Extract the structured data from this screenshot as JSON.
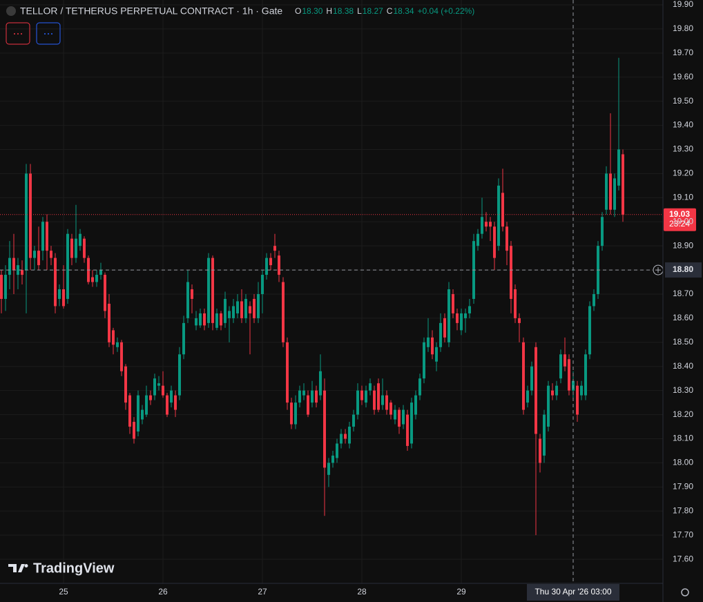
{
  "chart_data": {
    "type": "candlestick",
    "title": "TELLOR / TETHERUS PERPETUAL CONTRACT · 1h · Gate",
    "legend": {
      "open_label": "O",
      "open": "18.30",
      "high_label": "H",
      "high": "18.38",
      "low_label": "L",
      "low": "18.27",
      "close_label": "C",
      "close": "18.34",
      "change": "+0.04 (+0.22%)"
    },
    "watermark": "TradingView",
    "up_color": "#089981",
    "down_color": "#f23645",
    "grid": true,
    "countdown": "23:24",
    "crosshair": {
      "time": {
        "value": "2026-04-30T03:00",
        "label": "Thu 30 Apr '26 03:00"
      },
      "price": {
        "value": 18.8,
        "label": "18.80"
      }
    },
    "xlim": [
      "2026-04-24T08:40",
      "2026-05-01T00:40"
    ],
    "xticks": [
      {
        "value": "2026-04-25T00:00",
        "label": "25"
      },
      {
        "value": "2026-04-26T00:00",
        "label": "26"
      },
      {
        "value": "2026-04-27T00:00",
        "label": "27"
      },
      {
        "value": "2026-04-28T00:00",
        "label": "28"
      },
      {
        "value": "2026-04-29T00:00",
        "label": "29"
      }
    ],
    "ylim": [
      17.5,
      19.92
    ],
    "yticks": [
      {
        "value": 17.6,
        "label": "17.60"
      },
      {
        "value": 17.7,
        "label": "17.70"
      },
      {
        "value": 17.8,
        "label": "17.80"
      },
      {
        "value": 17.9,
        "label": "17.90"
      },
      {
        "value": 18.0,
        "label": "18.00"
      },
      {
        "value": 18.1,
        "label": "18.10"
      },
      {
        "value": 18.2,
        "label": "18.20"
      },
      {
        "value": 18.3,
        "label": "18.30"
      },
      {
        "value": 18.4,
        "label": "18.40"
      },
      {
        "value": 18.5,
        "label": "18.50"
      },
      {
        "value": 18.6,
        "label": "18.60"
      },
      {
        "value": 18.7,
        "label": "18.70"
      },
      {
        "value": 18.8,
        "label": "18.80"
      },
      {
        "value": 18.9,
        "label": "18.90"
      },
      {
        "value": 19.0,
        "label": "19.00"
      },
      {
        "value": 19.1,
        "label": "19.10"
      },
      {
        "value": 19.2,
        "label": "19.20"
      },
      {
        "value": 19.3,
        "label": "19.30"
      },
      {
        "value": 19.4,
        "label": "19.40"
      },
      {
        "value": 19.5,
        "label": "19.50"
      },
      {
        "value": 19.6,
        "label": "19.60"
      },
      {
        "value": 19.7,
        "label": "19.70"
      },
      {
        "value": 19.8,
        "label": "19.80"
      },
      {
        "value": 19.9,
        "label": "19.90"
      }
    ],
    "x": [
      "2026-04-24T09:00",
      "2026-04-24T10:00",
      "2026-04-24T11:00",
      "2026-04-24T12:00",
      "2026-04-24T13:00",
      "2026-04-24T14:00",
      "2026-04-24T15:00",
      "2026-04-24T16:00",
      "2026-04-24T17:00",
      "2026-04-24T18:00",
      "2026-04-24T19:00",
      "2026-04-24T20:00",
      "2026-04-24T21:00",
      "2026-04-24T22:00",
      "2026-04-24T23:00",
      "2026-04-25T00:00",
      "2026-04-25T01:00",
      "2026-04-25T02:00",
      "2026-04-25T03:00",
      "2026-04-25T04:00",
      "2026-04-25T05:00",
      "2026-04-25T06:00",
      "2026-04-25T07:00",
      "2026-04-25T08:00",
      "2026-04-25T09:00",
      "2026-04-25T10:00",
      "2026-04-25T11:00",
      "2026-04-25T12:00",
      "2026-04-25T13:00",
      "2026-04-25T14:00",
      "2026-04-25T15:00",
      "2026-04-25T16:00",
      "2026-04-25T17:00",
      "2026-04-25T18:00",
      "2026-04-25T19:00",
      "2026-04-25T20:00",
      "2026-04-25T21:00",
      "2026-04-25T22:00",
      "2026-04-25T23:00",
      "2026-04-26T00:00",
      "2026-04-26T01:00",
      "2026-04-26T02:00",
      "2026-04-26T03:00",
      "2026-04-26T04:00",
      "2026-04-26T05:00",
      "2026-04-26T06:00",
      "2026-04-26T07:00",
      "2026-04-26T08:00",
      "2026-04-26T09:00",
      "2026-04-26T10:00",
      "2026-04-26T11:00",
      "2026-04-26T12:00",
      "2026-04-26T13:00",
      "2026-04-26T14:00",
      "2026-04-26T15:00",
      "2026-04-26T16:00",
      "2026-04-26T17:00",
      "2026-04-26T18:00",
      "2026-04-26T19:00",
      "2026-04-26T20:00",
      "2026-04-26T21:00",
      "2026-04-26T22:00",
      "2026-04-26T23:00",
      "2026-04-27T00:00",
      "2026-04-27T01:00",
      "2026-04-27T02:00",
      "2026-04-27T03:00",
      "2026-04-27T04:00",
      "2026-04-27T05:00",
      "2026-04-27T06:00",
      "2026-04-27T07:00",
      "2026-04-27T08:00",
      "2026-04-27T09:00",
      "2026-04-27T10:00",
      "2026-04-27T11:00",
      "2026-04-27T12:00",
      "2026-04-27T13:00",
      "2026-04-27T14:00",
      "2026-04-27T15:00",
      "2026-04-27T16:00",
      "2026-04-27T17:00",
      "2026-04-27T18:00",
      "2026-04-27T19:00",
      "2026-04-27T20:00",
      "2026-04-27T21:00",
      "2026-04-27T22:00",
      "2026-04-27T23:00",
      "2026-04-28T00:00",
      "2026-04-28T01:00",
      "2026-04-28T02:00",
      "2026-04-28T03:00",
      "2026-04-28T04:00",
      "2026-04-28T05:00",
      "2026-04-28T06:00",
      "2026-04-28T07:00",
      "2026-04-28T08:00",
      "2026-04-28T09:00",
      "2026-04-28T10:00",
      "2026-04-28T11:00",
      "2026-04-28T12:00",
      "2026-04-28T13:00",
      "2026-04-28T14:00",
      "2026-04-28T15:00",
      "2026-04-28T16:00",
      "2026-04-28T17:00",
      "2026-04-28T18:00",
      "2026-04-28T19:00",
      "2026-04-28T20:00",
      "2026-04-28T21:00",
      "2026-04-28T22:00",
      "2026-04-28T23:00",
      "2026-04-29T00:00",
      "2026-04-29T01:00",
      "2026-04-29T02:00",
      "2026-04-29T03:00",
      "2026-04-29T04:00",
      "2026-04-29T05:00",
      "2026-04-29T06:00",
      "2026-04-29T07:00",
      "2026-04-29T08:00",
      "2026-04-29T09:00",
      "2026-04-29T10:00",
      "2026-04-29T11:00",
      "2026-04-29T12:00",
      "2026-04-29T13:00",
      "2026-04-29T14:00",
      "2026-04-29T15:00",
      "2026-04-29T16:00",
      "2026-04-29T17:00",
      "2026-04-29T18:00",
      "2026-04-29T19:00",
      "2026-04-29T20:00",
      "2026-04-29T21:00",
      "2026-04-29T22:00",
      "2026-04-29T23:00",
      "2026-04-30T00:00",
      "2026-04-30T01:00",
      "2026-04-30T02:00",
      "2026-04-30T03:00",
      "2026-04-30T04:00",
      "2026-04-30T05:00",
      "2026-04-30T06:00",
      "2026-04-30T07:00",
      "2026-04-30T08:00",
      "2026-04-30T09:00",
      "2026-04-30T10:00",
      "2026-04-30T11:00",
      "2026-04-30T12:00",
      "2026-04-30T13:00",
      "2026-04-30T14:00",
      "2026-04-30T15:00"
    ],
    "open": [
      18.78,
      18.68,
      18.78,
      18.85,
      18.78,
      18.8,
      18.8,
      19.2,
      18.85,
      18.88,
      18.88,
      19.0,
      18.88,
      18.85,
      18.68,
      18.72,
      18.68,
      18.93,
      18.85,
      18.9,
      18.93,
      18.85,
      18.77,
      18.75,
      18.78,
      18.78,
      18.66,
      18.55,
      18.48,
      18.5,
      18.4,
      18.28,
      18.17,
      18.13,
      18.18,
      18.2,
      18.28,
      18.28,
      18.32,
      18.32,
      18.28,
      18.25,
      18.28,
      18.28,
      18.45,
      18.6,
      18.72,
      18.57,
      18.57,
      18.62,
      18.58,
      18.85,
      18.56,
      18.62,
      18.58,
      18.6,
      18.6,
      18.62,
      18.67,
      18.6,
      18.65,
      18.68,
      18.6,
      18.7,
      18.78,
      18.85,
      18.9,
      18.86,
      18.75,
      18.5,
      18.25,
      18.16,
      18.25,
      18.28,
      18.28,
      18.25,
      18.3,
      18.28,
      18.3,
      17.95,
      18.0,
      18.02,
      18.08,
      18.12,
      18.08,
      18.15,
      18.2,
      18.3,
      18.25,
      18.3,
      18.3,
      18.33,
      18.24,
      18.28,
      18.25,
      18.18,
      18.22,
      18.16,
      18.2,
      18.08,
      18.2,
      18.28,
      18.35,
      18.48,
      18.52,
      18.42,
      18.48,
      18.6,
      18.5,
      18.7,
      18.62,
      18.55,
      18.6,
      18.62,
      18.68,
      18.9,
      18.95,
      19.0,
      19.0,
      18.98,
      18.9,
      19.12,
      18.98,
      18.9,
      18.72,
      18.6,
      18.5,
      18.25,
      18.3,
      18.48,
      18.1,
      18.03,
      18.15,
      18.3,
      18.28,
      18.35,
      18.45,
      18.43,
      18.3,
      18.32,
      18.28,
      18.28,
      18.45,
      18.65,
      18.7,
      18.9,
      19.05,
      19.2,
      19.05,
      19.15,
      19.28
    ],
    "high": [
      18.8,
      18.82,
      18.92,
      18.95,
      18.85,
      18.84,
      19.24,
      19.24,
      18.9,
      18.98,
      19.02,
      19.03,
      18.9,
      18.87,
      18.74,
      18.82,
      18.97,
      18.95,
      19.07,
      18.97,
      18.94,
      18.86,
      18.8,
      18.8,
      18.83,
      18.79,
      18.7,
      18.56,
      18.52,
      18.51,
      18.41,
      18.29,
      18.19,
      18.3,
      18.24,
      18.32,
      18.3,
      18.37,
      18.36,
      18.38,
      18.29,
      18.32,
      18.3,
      18.48,
      18.61,
      18.8,
      18.74,
      18.63,
      18.64,
      18.64,
      18.87,
      18.86,
      18.64,
      18.63,
      18.71,
      18.65,
      18.68,
      18.7,
      18.72,
      18.7,
      18.67,
      18.7,
      18.75,
      18.8,
      18.87,
      18.87,
      18.95,
      18.88,
      18.77,
      18.52,
      18.27,
      18.28,
      18.32,
      18.33,
      18.3,
      18.34,
      18.32,
      18.45,
      18.35,
      18.02,
      18.05,
      18.1,
      18.14,
      18.14,
      18.17,
      18.22,
      18.33,
      18.32,
      18.32,
      18.35,
      18.32,
      18.35,
      18.35,
      18.3,
      18.26,
      18.24,
      18.23,
      18.24,
      18.22,
      18.27,
      18.3,
      18.37,
      18.52,
      18.6,
      18.55,
      18.5,
      18.62,
      18.62,
      18.75,
      18.72,
      18.64,
      18.64,
      18.64,
      18.68,
      18.95,
      18.97,
      19.1,
      19.04,
      19.02,
      19.0,
      19.18,
      19.22,
      19.0,
      18.92,
      18.74,
      18.62,
      18.52,
      18.32,
      18.42,
      18.5,
      18.12,
      18.22,
      18.34,
      18.33,
      18.34,
      18.47,
      18.52,
      18.45,
      18.38,
      18.34,
      18.34,
      18.47,
      18.67,
      18.72,
      18.92,
      19.04,
      19.23,
      19.45,
      19.2,
      19.68,
      19.3
    ],
    "low": [
      18.62,
      18.63,
      18.72,
      18.7,
      18.72,
      18.74,
      18.62,
      18.8,
      18.8,
      18.8,
      18.84,
      18.8,
      18.82,
      18.62,
      18.65,
      18.64,
      18.66,
      18.82,
      18.83,
      18.88,
      18.83,
      18.74,
      18.73,
      18.73,
      18.76,
      18.6,
      18.48,
      18.45,
      18.46,
      18.36,
      18.22,
      18.12,
      18.08,
      18.11,
      18.16,
      18.19,
      18.24,
      18.26,
      18.3,
      18.27,
      18.19,
      18.23,
      18.19,
      18.26,
      18.43,
      18.58,
      18.62,
      18.55,
      18.56,
      18.55,
      18.56,
      18.55,
      18.55,
      18.55,
      18.56,
      18.5,
      18.58,
      18.6,
      18.58,
      18.58,
      18.45,
      18.58,
      18.58,
      18.62,
      18.76,
      18.8,
      18.85,
      18.75,
      18.48,
      18.22,
      18.14,
      18.14,
      18.23,
      18.26,
      18.19,
      18.23,
      18.23,
      18.26,
      17.78,
      17.9,
      17.98,
      18.0,
      18.06,
      18.08,
      18.06,
      18.13,
      18.18,
      18.24,
      18.23,
      18.28,
      18.2,
      18.21,
      18.22,
      18.2,
      18.18,
      18.16,
      18.12,
      18.14,
      18.05,
      18.06,
      18.18,
      18.26,
      18.33,
      18.46,
      18.43,
      18.38,
      18.46,
      18.5,
      18.48,
      18.6,
      18.55,
      18.53,
      18.54,
      18.6,
      18.66,
      18.88,
      18.93,
      18.96,
      18.92,
      18.8,
      18.88,
      18.96,
      18.82,
      18.62,
      18.58,
      18.5,
      18.2,
      18.23,
      18.28,
      17.7,
      17.96,
      18.0,
      18.13,
      18.26,
      18.26,
      18.33,
      18.38,
      18.28,
      18.27,
      18.17,
      18.26,
      18.26,
      18.43,
      18.63,
      18.68,
      18.88,
      19.03,
      19.03,
      19.02,
      19.13,
      19.0
    ],
    "close": [
      18.68,
      18.78,
      18.85,
      18.8,
      18.82,
      18.78,
      19.2,
      18.85,
      18.88,
      18.82,
      19.0,
      18.88,
      18.85,
      18.65,
      18.72,
      18.65,
      18.95,
      18.85,
      18.93,
      18.95,
      18.85,
      18.75,
      18.75,
      18.78,
      18.8,
      18.63,
      18.5,
      18.49,
      18.5,
      18.38,
      18.25,
      18.15,
      18.1,
      18.28,
      18.22,
      18.28,
      18.26,
      18.35,
      18.33,
      18.28,
      18.2,
      18.3,
      18.22,
      18.45,
      18.58,
      18.75,
      18.68,
      18.6,
      18.62,
      18.57,
      18.85,
      18.58,
      18.62,
      18.57,
      18.68,
      18.63,
      18.65,
      18.67,
      18.6,
      18.68,
      18.62,
      18.6,
      18.7,
      18.78,
      18.85,
      18.82,
      18.88,
      18.78,
      18.5,
      18.25,
      18.16,
      18.25,
      18.3,
      18.3,
      18.2,
      18.3,
      18.25,
      18.38,
      17.98,
      18.0,
      18.03,
      18.08,
      18.12,
      18.1,
      18.15,
      18.2,
      18.3,
      18.26,
      18.3,
      18.33,
      18.22,
      18.22,
      18.28,
      18.22,
      18.2,
      18.22,
      18.15,
      18.22,
      18.07,
      18.25,
      18.28,
      18.35,
      18.5,
      18.52,
      18.45,
      18.48,
      18.58,
      18.52,
      18.72,
      18.62,
      18.58,
      18.62,
      18.62,
      18.65,
      18.92,
      18.95,
      19.02,
      18.98,
      18.98,
      18.85,
      19.15,
      18.98,
      18.88,
      18.68,
      18.6,
      18.58,
      18.22,
      18.3,
      18.4,
      18.12,
      18.0,
      18.2,
      18.32,
      18.28,
      18.32,
      18.45,
      18.4,
      18.3,
      18.34,
      18.2,
      18.32,
      18.45,
      18.65,
      18.7,
      18.9,
      19.02,
      19.2,
      19.05,
      19.18,
      19.3,
      19.03
    ]
  }
}
